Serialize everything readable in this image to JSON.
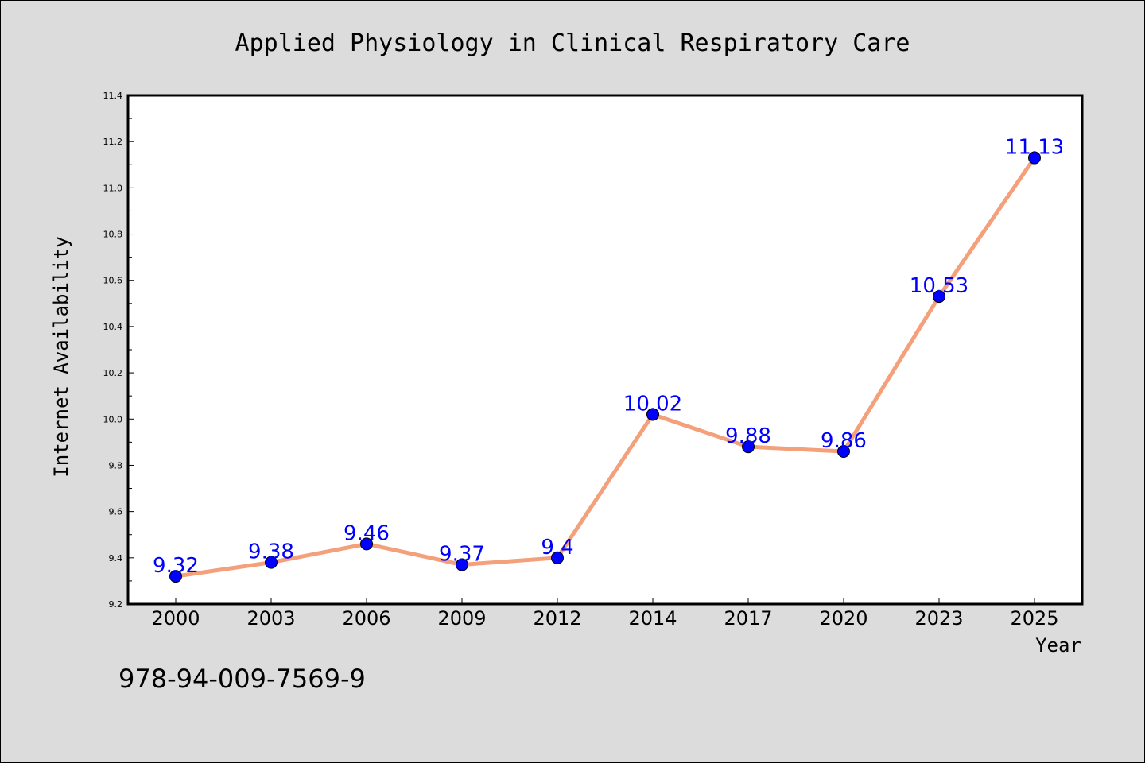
{
  "chart_data": {
    "type": "line",
    "title": "Applied Physiology in Clinical Respiratory Care",
    "xlabel": "Year",
    "ylabel": "Internet Availability",
    "categories": [
      "2000",
      "2003",
      "2006",
      "2009",
      "2012",
      "2014",
      "2017",
      "2020",
      "2023",
      "2025"
    ],
    "series": [
      {
        "values": [
          9.32,
          9.38,
          9.46,
          9.37,
          9.4,
          10.02,
          9.88,
          9.86,
          10.53,
          11.13
        ],
        "labels": [
          "9.32",
          "9.38",
          "9.46",
          "9.37",
          "9.4",
          "10.02",
          "9.88",
          "9.86",
          "10.53",
          "11.13"
        ],
        "line_color": "#f4a07a",
        "marker_color": "#0000ff"
      }
    ],
    "ylim": [
      9.2,
      11.4
    ],
    "yticks": [
      "9.2",
      "9.4",
      "9.6",
      "9.8",
      "10.0",
      "10.2",
      "10.4",
      "10.6",
      "10.8",
      "11.0",
      "11.2",
      "11.4"
    ],
    "grid": false,
    "legend": "none"
  },
  "isbn": "978-94-009-7569-9",
  "colors": {
    "background": "#dcdcdc",
    "plot_background": "#ffffff",
    "line": "#f4a07a",
    "marker": "#0000ff",
    "data_label": "#0000ff"
  }
}
